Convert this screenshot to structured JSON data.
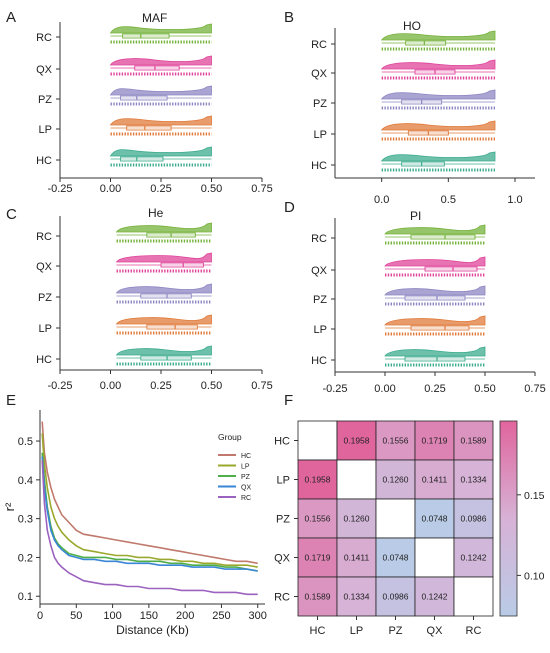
{
  "colors": {
    "HC": "#3cab8e",
    "LP": "#e07a3a",
    "PZ": "#8c86c2",
    "QX": "#e0449a",
    "RC": "#74b23a",
    "ld_HC": "#c0796c",
    "ld_LP": "#9aa82d",
    "ld_PZ": "#4fae4a",
    "ld_QX": "#3a86d6",
    "ld_RC": "#9b62bf",
    "heat_low": "#b9cbe6",
    "heat_mid": "#d7b2d6",
    "heat_high": "#e0659d"
  },
  "chart_data": [
    {
      "panel": "A",
      "type": "raincloud",
      "title": "MAF",
      "groups": [
        "RC",
        "QX",
        "PZ",
        "LP",
        "HC"
      ],
      "x_ticks": [
        "-0.25",
        "0.00",
        "0.25",
        "0.50",
        "0.75"
      ],
      "xlim": [
        -0.25,
        0.75
      ],
      "range": [
        0,
        0.5
      ],
      "summary": [
        {
          "group": "RC",
          "q1": 0.06,
          "median": 0.15,
          "q3": 0.29
        },
        {
          "group": "QX",
          "q1": 0.12,
          "median": 0.22,
          "q3": 0.34
        },
        {
          "group": "PZ",
          "q1": 0.05,
          "median": 0.13,
          "q3": 0.28
        },
        {
          "group": "LP",
          "q1": 0.08,
          "median": 0.17,
          "q3": 0.3
        },
        {
          "group": "HC",
          "q1": 0.05,
          "median": 0.13,
          "q3": 0.26
        }
      ]
    },
    {
      "panel": "B",
      "type": "raincloud",
      "title": "HO",
      "groups": [
        "RC",
        "QX",
        "PZ",
        "LP",
        "HC"
      ],
      "x_ticks": [
        "0.0",
        "0.5",
        "1.0"
      ],
      "xlim": [
        -0.35,
        1.15
      ],
      "range": [
        0,
        0.85
      ],
      "summary": [
        {
          "group": "RC",
          "q1": 0.18,
          "median": 0.32,
          "q3": 0.48
        },
        {
          "group": "QX",
          "q1": 0.25,
          "median": 0.4,
          "q3": 0.55
        },
        {
          "group": "PZ",
          "q1": 0.15,
          "median": 0.3,
          "q3": 0.45
        },
        {
          "group": "LP",
          "q1": 0.2,
          "median": 0.35,
          "q3": 0.5
        },
        {
          "group": "HC",
          "q1": 0.15,
          "median": 0.3,
          "q3": 0.47
        }
      ]
    },
    {
      "panel": "C",
      "type": "raincloud",
      "title": "He",
      "groups": [
        "RC",
        "QX",
        "PZ",
        "LP",
        "HC"
      ],
      "x_ticks": [
        "-0.25",
        "0.00",
        "0.25",
        "0.50",
        "0.75"
      ],
      "xlim": [
        -0.25,
        0.75
      ],
      "range": [
        0.03,
        0.5
      ],
      "summary": [
        {
          "group": "RC",
          "q1": 0.18,
          "median": 0.3,
          "q3": 0.42
        },
        {
          "group": "QX",
          "q1": 0.25,
          "median": 0.36,
          "q3": 0.46
        },
        {
          "group": "PZ",
          "q1": 0.15,
          "median": 0.28,
          "q3": 0.4
        },
        {
          "group": "LP",
          "q1": 0.18,
          "median": 0.32,
          "q3": 0.43
        },
        {
          "group": "HC",
          "q1": 0.15,
          "median": 0.28,
          "q3": 0.4
        }
      ]
    },
    {
      "panel": "D",
      "type": "raincloud",
      "title": "PI",
      "groups": [
        "RC",
        "QX",
        "PZ",
        "LP",
        "HC"
      ],
      "x_ticks": [
        "-0.25",
        "0.00",
        "0.25",
        "0.50",
        "0.75"
      ],
      "xlim": [
        -0.25,
        0.75
      ],
      "range": [
        0,
        0.5
      ],
      "summary": [
        {
          "group": "RC",
          "q1": 0.13,
          "median": 0.3,
          "q3": 0.45
        },
        {
          "group": "QX",
          "q1": 0.2,
          "median": 0.34,
          "q3": 0.46
        },
        {
          "group": "PZ",
          "q1": 0.1,
          "median": 0.26,
          "q3": 0.4
        },
        {
          "group": "LP",
          "q1": 0.13,
          "median": 0.3,
          "q3": 0.42
        },
        {
          "group": "HC",
          "q1": 0.1,
          "median": 0.26,
          "q3": 0.4
        }
      ]
    },
    {
      "panel": "E",
      "type": "line",
      "xlabel": "Distance (Kb)",
      "ylabel": "r²",
      "xlim": [
        0,
        310
      ],
      "ylim": [
        0.08,
        0.58
      ],
      "x_ticks": [
        0,
        50,
        100,
        150,
        200,
        250,
        300
      ],
      "y_ticks": [
        0.1,
        0.2,
        0.3,
        0.4,
        0.5
      ],
      "legend_title": "Group",
      "legend_position": "right",
      "x": [
        3,
        6,
        10,
        15,
        20,
        25,
        30,
        40,
        50,
        60,
        75,
        90,
        105,
        120,
        135,
        150,
        165,
        180,
        195,
        210,
        225,
        240,
        255,
        270,
        285,
        300
      ],
      "series": [
        {
          "name": "HC",
          "values": [
            0.55,
            0.47,
            0.42,
            0.38,
            0.35,
            0.33,
            0.31,
            0.29,
            0.27,
            0.26,
            0.255,
            0.25,
            0.245,
            0.24,
            0.235,
            0.23,
            0.225,
            0.22,
            0.215,
            0.21,
            0.205,
            0.2,
            0.195,
            0.19,
            0.19,
            0.185
          ]
        },
        {
          "name": "LP",
          "values": [
            0.52,
            0.44,
            0.38,
            0.33,
            0.3,
            0.28,
            0.265,
            0.245,
            0.23,
            0.22,
            0.215,
            0.21,
            0.205,
            0.205,
            0.2,
            0.2,
            0.195,
            0.195,
            0.19,
            0.19,
            0.185,
            0.185,
            0.18,
            0.18,
            0.18,
            0.175
          ]
        },
        {
          "name": "PZ",
          "values": [
            0.47,
            0.4,
            0.33,
            0.28,
            0.25,
            0.235,
            0.225,
            0.21,
            0.205,
            0.2,
            0.2,
            0.2,
            0.195,
            0.195,
            0.19,
            0.19,
            0.19,
            0.185,
            0.185,
            0.18,
            0.18,
            0.18,
            0.175,
            0.175,
            0.17,
            0.165
          ]
        },
        {
          "name": "QX",
          "values": [
            0.46,
            0.38,
            0.32,
            0.27,
            0.245,
            0.23,
            0.22,
            0.205,
            0.2,
            0.195,
            0.195,
            0.19,
            0.19,
            0.185,
            0.185,
            0.185,
            0.18,
            0.18,
            0.18,
            0.175,
            0.175,
            0.175,
            0.17,
            0.17,
            0.17,
            0.165
          ]
        },
        {
          "name": "RC",
          "values": [
            0.45,
            0.34,
            0.27,
            0.23,
            0.2,
            0.185,
            0.175,
            0.16,
            0.15,
            0.14,
            0.135,
            0.13,
            0.13,
            0.125,
            0.125,
            0.12,
            0.12,
            0.12,
            0.115,
            0.115,
            0.115,
            0.11,
            0.11,
            0.11,
            0.105,
            0.105
          ]
        }
      ]
    },
    {
      "panel": "F",
      "type": "heatmap",
      "rows": [
        "HC",
        "LP",
        "PZ",
        "QX",
        "RC"
      ],
      "cols": [
        "HC",
        "LP",
        "PZ",
        "QX",
        "RC"
      ],
      "values": [
        [
          null,
          0.1958,
          0.1556,
          0.1719,
          0.1589
        ],
        [
          0.1958,
          null,
          0.126,
          0.1411,
          0.1334
        ],
        [
          0.1556,
          0.126,
          null,
          0.0748,
          0.0986
        ],
        [
          0.1719,
          0.1411,
          0.0748,
          null,
          0.1242
        ],
        [
          0.1589,
          0.1334,
          0.0986,
          0.1242,
          null
        ]
      ],
      "labels": [
        [
          "",
          "0.1958",
          "0.1556",
          "0.1719",
          "0.1589"
        ],
        [
          "0.1958",
          "",
          "0.1260",
          "0.1411",
          "0.1334"
        ],
        [
          "0.1556",
          "0.1260",
          "",
          "0.0748",
          "0.0986"
        ],
        [
          "0.1719",
          "0.1411",
          "0.0748",
          "",
          "0.1242"
        ],
        [
          "0.1589",
          "0.1334",
          "0.0986",
          "0.1242",
          ""
        ]
      ],
      "colorbar_ticks": [
        "0.15",
        "0.10"
      ],
      "value_range": [
        0.0748,
        0.1958
      ]
    }
  ],
  "panel_letters": [
    "A",
    "B",
    "C",
    "D",
    "E",
    "F"
  ]
}
